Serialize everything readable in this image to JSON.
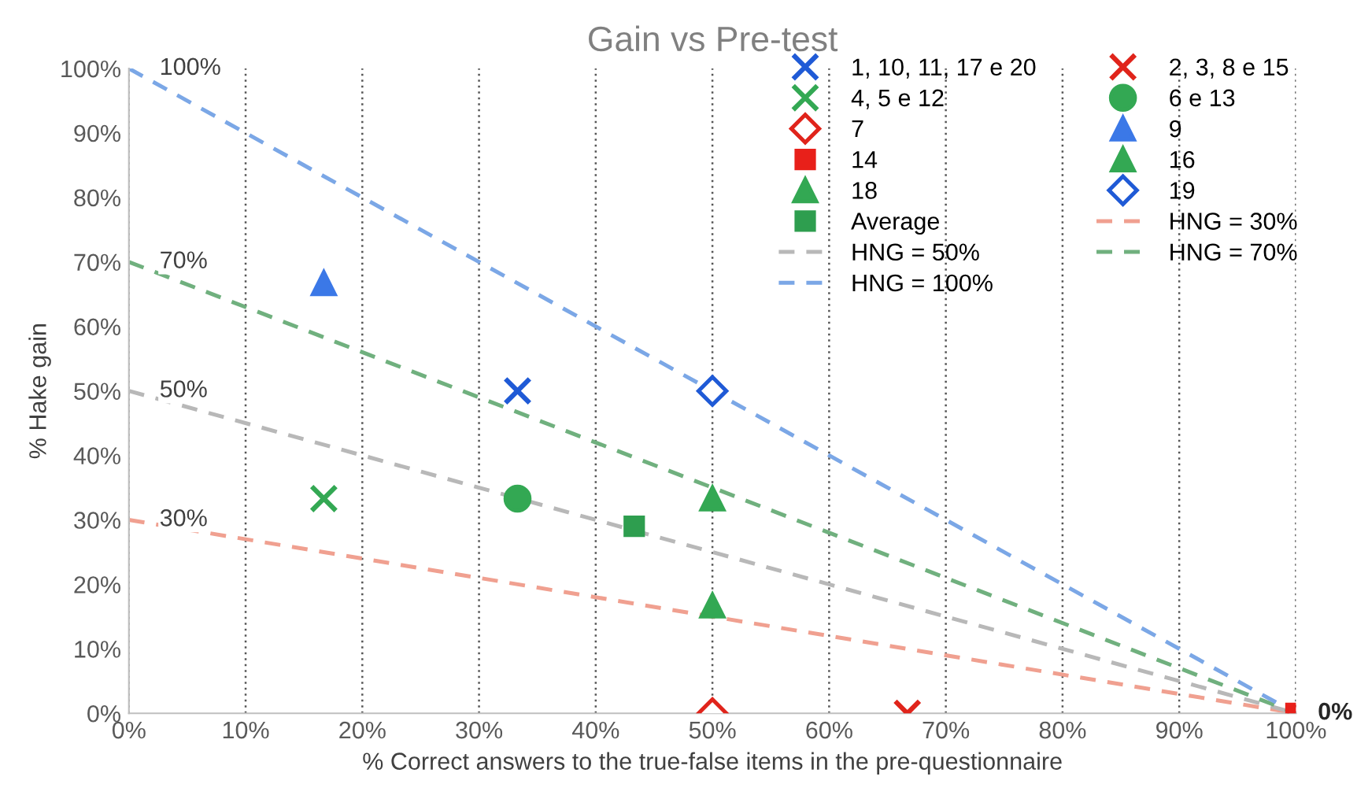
{
  "chart_data": {
    "type": "scatter",
    "title": "Gain vs Pre-test",
    "xlabel": "% Correct answers to the true-false items in the pre-questionnaire",
    "ylabel": "% Hake gain",
    "xlim": [
      0,
      100
    ],
    "ylim": [
      0,
      100
    ],
    "xticks": [
      {
        "value": 0,
        "label": "0%"
      },
      {
        "value": 10,
        "label": "10%"
      },
      {
        "value": 20,
        "label": "20%"
      },
      {
        "value": 30,
        "label": "30%"
      },
      {
        "value": 40,
        "label": "40%"
      },
      {
        "value": 50,
        "label": "50%"
      },
      {
        "value": 60,
        "label": "60%"
      },
      {
        "value": 70,
        "label": "70%"
      },
      {
        "value": 80,
        "label": "80%"
      },
      {
        "value": 90,
        "label": "90%"
      },
      {
        "value": 100,
        "label": "100%"
      }
    ],
    "yticks": [
      {
        "value": 0,
        "label": "0%"
      },
      {
        "value": 10,
        "label": "10%"
      },
      {
        "value": 20,
        "label": "20%"
      },
      {
        "value": 30,
        "label": "30%"
      },
      {
        "value": 40,
        "label": "40%"
      },
      {
        "value": 50,
        "label": "50%"
      },
      {
        "value": 60,
        "label": "60%"
      },
      {
        "value": 70,
        "label": "70%"
      },
      {
        "value": 80,
        "label": "80%"
      },
      {
        "value": 90,
        "label": "90%"
      },
      {
        "value": 100,
        "label": "100%"
      }
    ],
    "grid": "x",
    "legend": "top right",
    "series": [
      {
        "name": "1, 10, 11, 17 e 20",
        "color": "#1f5ad6",
        "marker": "cross",
        "x": [
          33.3
        ],
        "values": [
          50
        ]
      },
      {
        "name": "2, 3, 8 e 15",
        "color": "#e0241b",
        "marker": "cross",
        "x": [
          66.7
        ],
        "values": [
          0
        ]
      },
      {
        "name": "4, 5 e 12",
        "color": "#33a853",
        "marker": "cross",
        "x": [
          16.7
        ],
        "values": [
          33.3
        ]
      },
      {
        "name": "6 e 13",
        "color": "#33a853",
        "marker": "circle",
        "x": [
          33.3
        ],
        "values": [
          33.3
        ]
      },
      {
        "name": "7",
        "color": "#e0241b",
        "marker": "diamond",
        "x": [
          50
        ],
        "values": [
          0
        ]
      },
      {
        "name": "9",
        "color": "#3b78e7",
        "marker": "triangle",
        "x": [
          16.7
        ],
        "values": [
          66.7
        ]
      },
      {
        "name": "14",
        "color": "#e8201a",
        "marker": "square",
        "x": [
          100
        ],
        "values": [
          0
        ]
      },
      {
        "name": "16",
        "color": "#33a853",
        "marker": "triangle",
        "x": [
          50
        ],
        "values": [
          16.7
        ]
      },
      {
        "name": "18",
        "color": "#33a853",
        "marker": "triangle",
        "x": [
          50
        ],
        "values": [
          33.3
        ]
      },
      {
        "name": "19",
        "color": "#1f5ad6",
        "marker": "diamond",
        "x": [
          50
        ],
        "values": [
          50
        ]
      },
      {
        "name": "Average",
        "color": "#2e9e4f",
        "marker": "square",
        "x": [
          43.3
        ],
        "values": [
          29
        ]
      },
      {
        "name": "HNG = 30%",
        "type": "line",
        "line_style": "dashed",
        "color": "#f0a090",
        "x": [
          0,
          100
        ],
        "values": [
          30,
          0
        ]
      },
      {
        "name": "HNG = 50%",
        "type": "line",
        "line_style": "dashed",
        "color": "#b8b8b8",
        "x": [
          0,
          100
        ],
        "values": [
          50,
          0
        ]
      },
      {
        "name": "HNG = 70%",
        "type": "line",
        "line_style": "dashed",
        "color": "#70b07e",
        "x": [
          0,
          100
        ],
        "values": [
          70,
          0
        ]
      },
      {
        "name": "HNG = 100%",
        "type": "line",
        "line_style": "dashed",
        "color": "#7ba7e6",
        "x": [
          0,
          100
        ],
        "values": [
          100,
          0
        ]
      }
    ],
    "annotations": [
      "100%",
      "70%",
      "50%",
      "30%",
      "0%"
    ]
  }
}
